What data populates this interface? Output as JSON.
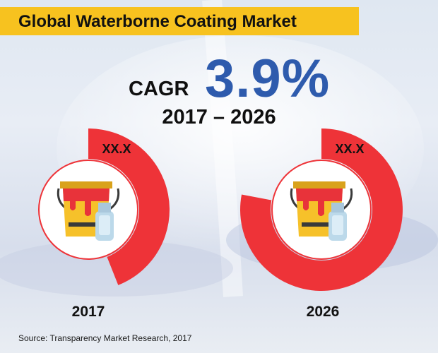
{
  "header": {
    "title": "Global Waterborne Coating Market"
  },
  "cagr": {
    "label": "CAGR",
    "value": "3.9%",
    "period": "2017 – 2026"
  },
  "chart_data": {
    "type": "pie",
    "categories": [
      "2017",
      "2026"
    ],
    "value_labels": [
      "XX.X",
      "XX.X"
    ],
    "shares": [
      0.44,
      0.78
    ],
    "colors": {
      "ring": "#ee3338",
      "inner_circle": "#ffffff",
      "accent_blue": "#2e5bad",
      "title_bar": "#f7c21f"
    },
    "icon": "paint-bucket-and-bottle-icon"
  },
  "footer": {
    "source": "Source: Transparency Market Research, 2017"
  }
}
